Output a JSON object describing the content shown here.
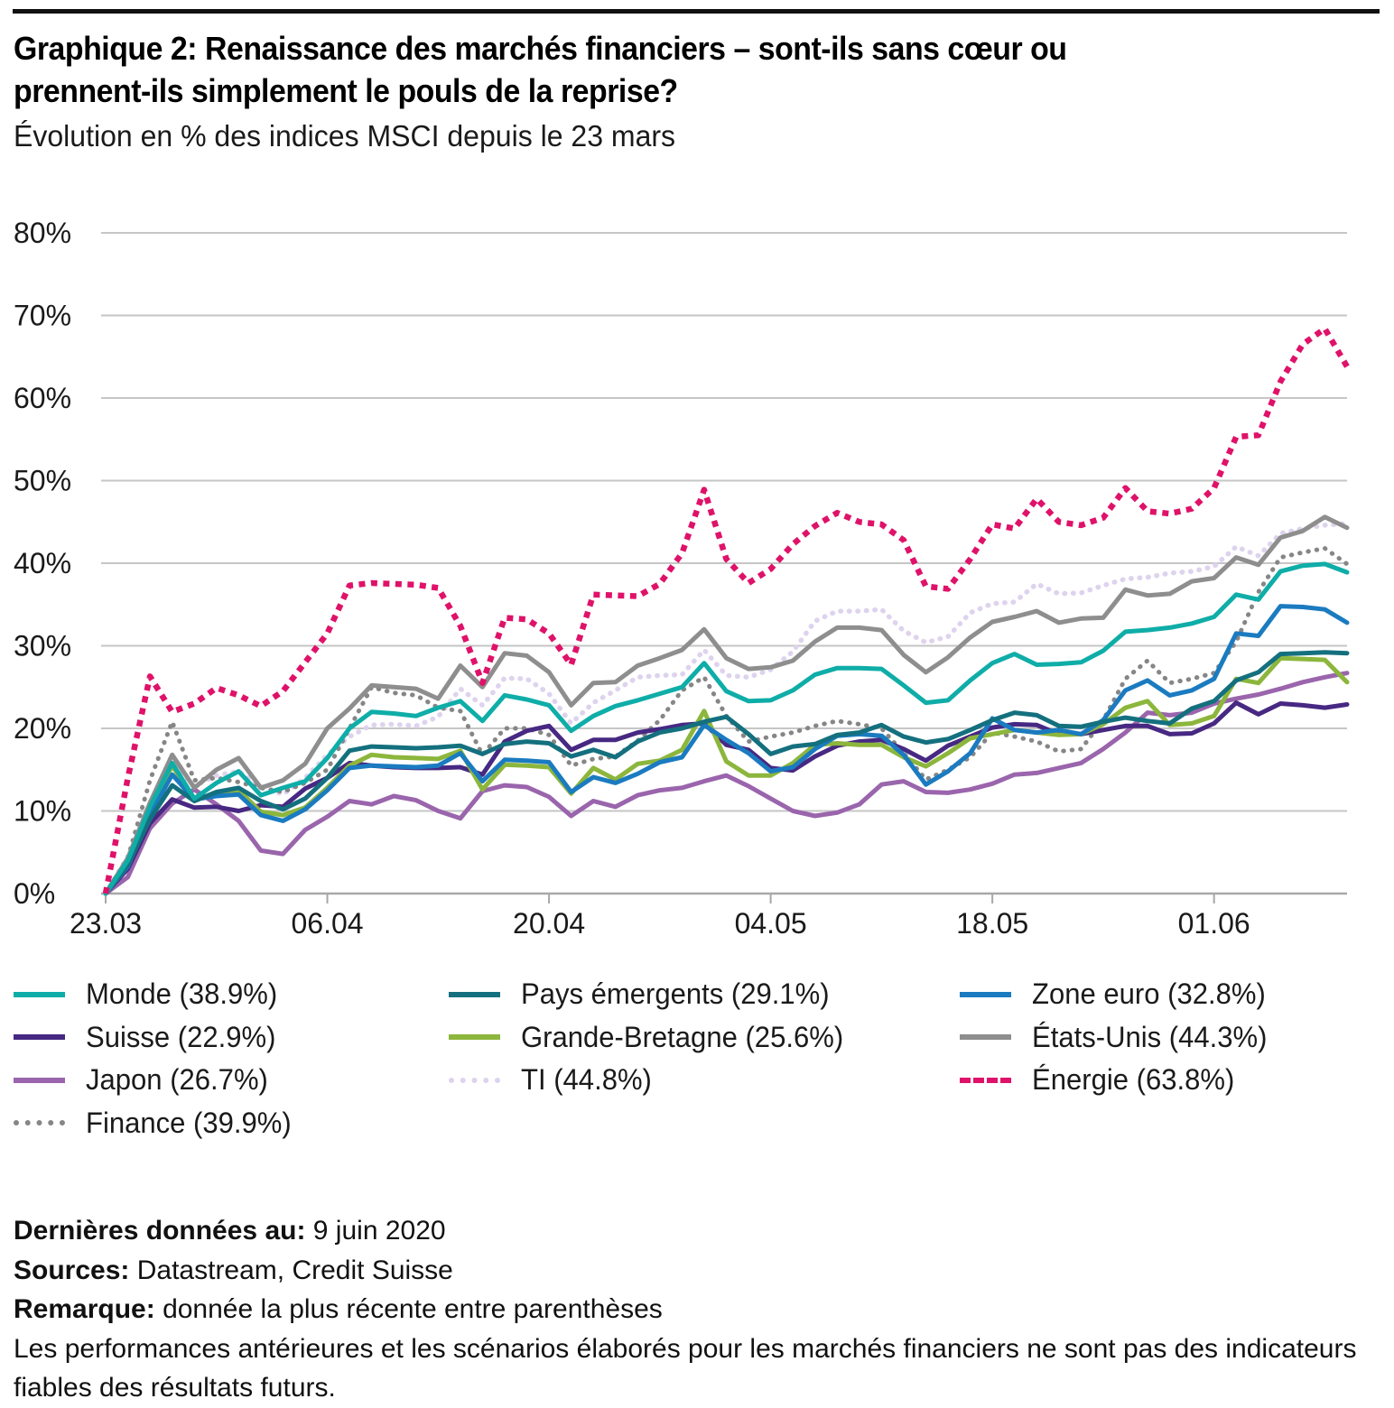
{
  "header": {
    "title_line1": "Graphique 2: Renaissance des marchés financiers – sont-ils sans cœur ou",
    "title_line2": "prennent-ils simplement le pouls de la reprise?",
    "subtitle": "Évolution en % des indices MSCI depuis le 23 mars"
  },
  "chart_data": {
    "type": "line",
    "title": "Graphique 2: Renaissance des marchés financiers – sont-ils sans cœur ou prennent-ils simplement le pouls de la reprise?",
    "subtitle": "Évolution en % des indices MSCI depuis le 23 mars",
    "n_points": 57,
    "x_axis": {
      "description": "Jours de bourse du 23.03.2020 au 09.06.2020",
      "ticks": [
        {
          "day": 0,
          "label": "23.03"
        },
        {
          "day": 10,
          "label": "06.04"
        },
        {
          "day": 20,
          "label": "20.04"
        },
        {
          "day": 30,
          "label": "04.05"
        },
        {
          "day": 40,
          "label": "18.05"
        },
        {
          "day": 50,
          "label": "01.06"
        }
      ]
    },
    "y_axis": {
      "range": [
        0,
        80
      ],
      "unit": "%",
      "ticks": [
        {
          "value": 80,
          "label": "80%"
        },
        {
          "value": 70,
          "label": "70%"
        },
        {
          "value": 60,
          "label": "60%"
        },
        {
          "value": 50,
          "label": "50%"
        },
        {
          "value": 40,
          "label": "40%"
        },
        {
          "value": 30,
          "label": "30%"
        },
        {
          "value": 20,
          "label": "20%"
        },
        {
          "value": 10,
          "label": "10%"
        },
        {
          "value": 0,
          "label": "0%"
        }
      ]
    },
    "draw_order": [
      "TI",
      "Japon",
      "Finance",
      "États-Unis",
      "Suisse",
      "Grande-Bretagne",
      "Zone euro",
      "Pays émergents",
      "Monde",
      "Énergie"
    ],
    "series": [
      {
        "name": "Monde",
        "label": "Monde (38.9%)",
        "final_value": 38.9,
        "color": "#0FADA8",
        "style": "solid",
        "values": [
          0,
          4.0,
          10.5,
          15.8,
          11.5,
          13.4,
          14.8,
          11.9,
          12.8,
          13.6,
          16.4,
          20.0,
          22.0,
          21.8,
          21.5,
          22.5,
          23.3,
          20.9,
          24.0,
          23.5,
          22.8,
          19.7,
          21.5,
          22.7,
          23.4,
          24.2,
          25.0,
          27.9,
          24.5,
          23.3,
          23.4,
          24.6,
          26.5,
          27.3,
          27.3,
          27.2,
          25.2,
          23.1,
          23.4,
          25.8,
          27.9,
          29.0,
          27.7,
          27.8,
          28.0,
          29.4,
          31.7,
          31.9,
          32.2,
          32.7,
          33.5,
          36.2,
          35.6,
          39.0,
          39.7,
          39.9,
          38.9
        ]
      },
      {
        "name": "Pays émergents",
        "label": "Pays émergents (29.1%)",
        "final_value": 29.1,
        "color": "#14707E",
        "style": "solid",
        "values": [
          0,
          3.5,
          9.0,
          13.1,
          11.2,
          12.3,
          12.8,
          11.2,
          10.2,
          11.5,
          14.0,
          17.3,
          17.8,
          17.7,
          17.6,
          17.7,
          17.9,
          16.9,
          18.1,
          18.4,
          18.2,
          16.6,
          17.4,
          16.5,
          18.4,
          19.5,
          20.0,
          20.8,
          21.4,
          19.3,
          16.9,
          17.8,
          18.1,
          19.2,
          19.5,
          20.4,
          19.0,
          18.3,
          18.7,
          19.8,
          21.0,
          21.9,
          21.6,
          20.3,
          20.2,
          20.8,
          21.3,
          20.9,
          20.6,
          22.4,
          23.3,
          25.8,
          26.8,
          29.0,
          29.1,
          29.2,
          29.1
        ]
      },
      {
        "name": "Zone euro",
        "label": "Zone euro (32.8%)",
        "final_value": 32.8,
        "color": "#1B7BC0",
        "style": "solid",
        "values": [
          0,
          3.3,
          9.5,
          14.4,
          11.4,
          11.8,
          12.0,
          9.5,
          8.8,
          10.2,
          12.5,
          15.2,
          15.5,
          15.4,
          15.3,
          15.5,
          17.0,
          13.6,
          16.2,
          16.1,
          15.9,
          12.3,
          14.1,
          13.4,
          14.5,
          15.9,
          16.5,
          20.4,
          18.6,
          17.0,
          14.8,
          15.3,
          17.5,
          19.1,
          19.3,
          19.1,
          16.8,
          13.2,
          14.8,
          17.0,
          21.2,
          19.8,
          19.5,
          19.8,
          19.3,
          21.0,
          24.6,
          25.8,
          24.0,
          24.6,
          26.0,
          31.5,
          31.2,
          34.8,
          34.7,
          34.4,
          32.8
        ]
      },
      {
        "name": "Suisse",
        "label": "Suisse (22.9%)",
        "final_value": 22.9,
        "color": "#472882",
        "style": "solid",
        "values": [
          0,
          3.0,
          8.5,
          11.4,
          10.4,
          10.5,
          10.0,
          10.7,
          10.5,
          12.7,
          14.0,
          15.8,
          15.5,
          15.3,
          15.2,
          15.2,
          15.3,
          14.4,
          18.4,
          19.7,
          20.3,
          17.4,
          18.6,
          18.6,
          19.5,
          19.9,
          20.4,
          20.6,
          18.0,
          17.4,
          15.2,
          14.9,
          16.6,
          17.9,
          18.4,
          18.6,
          17.5,
          16.1,
          17.9,
          19.0,
          20.1,
          20.5,
          20.4,
          19.3,
          19.3,
          19.8,
          20.3,
          20.3,
          19.3,
          19.4,
          20.6,
          23.1,
          21.7,
          23.0,
          22.8,
          22.5,
          22.9
        ]
      },
      {
        "name": "Grande-Bretagne",
        "label": "Grande-Bretagne (25.6%)",
        "final_value": 25.6,
        "color": "#8CB63C",
        "style": "solid",
        "values": [
          0,
          3.6,
          10.0,
          15.5,
          11.4,
          12.0,
          12.5,
          9.9,
          9.5,
          10.4,
          12.8,
          15.5,
          16.8,
          16.5,
          16.4,
          16.3,
          17.3,
          12.6,
          15.6,
          15.5,
          15.3,
          12.1,
          15.2,
          13.8,
          15.7,
          16.1,
          17.4,
          22.1,
          16.0,
          14.3,
          14.3,
          15.8,
          18.0,
          18.2,
          18.0,
          18.0,
          16.5,
          15.4,
          17.0,
          18.8,
          19.3,
          19.8,
          19.5,
          19.2,
          19.3,
          20.5,
          22.5,
          23.3,
          20.4,
          20.6,
          21.5,
          26.0,
          25.5,
          28.5,
          28.4,
          28.3,
          25.6
        ]
      },
      {
        "name": "États-Unis",
        "label": "États-Unis (44.3%)",
        "final_value": 44.3,
        "color": "#8E8E8E",
        "style": "solid",
        "values": [
          0,
          4.3,
          11.0,
          16.8,
          12.8,
          15.0,
          16.4,
          12.8,
          13.7,
          15.7,
          20.0,
          22.4,
          25.2,
          25.0,
          24.8,
          23.6,
          27.6,
          25.0,
          29.1,
          28.8,
          26.8,
          22.8,
          25.5,
          25.6,
          27.6,
          28.5,
          29.5,
          32.0,
          28.5,
          27.2,
          27.4,
          28.2,
          30.5,
          32.2,
          32.2,
          31.9,
          28.9,
          26.8,
          28.6,
          31.0,
          32.9,
          33.5,
          34.2,
          32.8,
          33.3,
          33.4,
          36.8,
          36.1,
          36.3,
          37.8,
          38.2,
          40.7,
          39.8,
          43.1,
          43.9,
          45.6,
          44.3
        ]
      },
      {
        "name": "Japon",
        "label": "Japon (26.7%)",
        "final_value": 26.7,
        "color": "#9A65AC",
        "style": "solid",
        "values": [
          0,
          2.0,
          7.9,
          10.9,
          12.6,
          10.8,
          8.8,
          5.2,
          4.8,
          7.7,
          9.3,
          11.2,
          10.8,
          11.8,
          11.3,
          10.0,
          9.1,
          12.4,
          13.1,
          12.9,
          11.7,
          9.4,
          11.2,
          10.5,
          11.9,
          12.5,
          12.8,
          13.6,
          14.3,
          13.0,
          11.5,
          10.0,
          9.4,
          9.8,
          10.8,
          13.2,
          13.6,
          12.3,
          12.2,
          12.6,
          13.3,
          14.4,
          14.6,
          15.2,
          15.8,
          17.5,
          19.5,
          21.9,
          21.6,
          21.9,
          23.0,
          23.6,
          24.1,
          24.8,
          25.6,
          26.2,
          26.7
        ]
      },
      {
        "name": "TI",
        "label": "TI (44.8%)",
        "final_value": 44.8,
        "color": "#DED3EE",
        "style": "dotted",
        "values": [
          0,
          4.5,
          11.0,
          16.0,
          13.0,
          14.3,
          14.8,
          13.0,
          12.0,
          14.0,
          16.8,
          19.0,
          20.4,
          20.5,
          20.3,
          21.4,
          24.8,
          22.8,
          26.1,
          26.0,
          24.2,
          20.6,
          23.1,
          24.6,
          26.2,
          26.4,
          26.5,
          29.5,
          26.4,
          26.2,
          27.1,
          29.3,
          33.0,
          34.2,
          34.2,
          34.4,
          31.8,
          30.4,
          31.1,
          34.0,
          35.1,
          35.3,
          37.5,
          36.3,
          36.4,
          37.3,
          38.1,
          38.3,
          38.8,
          39.0,
          39.6,
          42.0,
          40.9,
          43.6,
          44.2,
          44.6,
          44.8
        ]
      },
      {
        "name": "Énergie",
        "label": "Énergie (63.8%)",
        "final_value": 63.8,
        "color": "#DF1269",
        "style": "dashed",
        "values": [
          0,
          14.0,
          26.3,
          22.0,
          23.0,
          24.9,
          24.0,
          22.7,
          24.5,
          28.0,
          31.5,
          37.3,
          37.6,
          37.5,
          37.4,
          37.0,
          32.4,
          25.5,
          33.4,
          33.2,
          31.5,
          27.7,
          36.2,
          36.1,
          36.0,
          37.5,
          41.2,
          48.9,
          40.5,
          37.6,
          39.3,
          42.3,
          44.5,
          46.1,
          45.0,
          44.7,
          42.8,
          37.2,
          36.9,
          40.5,
          44.7,
          44.2,
          47.8,
          45.0,
          44.6,
          45.5,
          49.1,
          46.3,
          46.0,
          46.6,
          49.1,
          55.3,
          55.5,
          62.0,
          66.5,
          68.4,
          63.8
        ]
      },
      {
        "name": "Finance",
        "label": "Finance (39.9%)",
        "final_value": 39.9,
        "color": "#868686",
        "style": "dotted",
        "values": [
          0,
          4.3,
          13.7,
          20.8,
          13.7,
          14.0,
          13.5,
          12.8,
          12.3,
          13.4,
          15.0,
          20.0,
          25.0,
          24.3,
          24.0,
          22.5,
          22.1,
          16.8,
          20.0,
          20.0,
          19.2,
          15.5,
          16.3,
          16.6,
          18.5,
          21.0,
          24.6,
          26.2,
          21.5,
          18.4,
          19.0,
          19.5,
          20.3,
          20.9,
          20.5,
          20.0,
          17.0,
          13.8,
          15.0,
          16.5,
          19.5,
          19.0,
          18.4,
          17.2,
          17.5,
          21.0,
          26.0,
          28.2,
          25.5,
          26.0,
          26.7,
          30.5,
          36.5,
          40.7,
          41.3,
          41.8,
          39.9
        ]
      }
    ]
  },
  "legend": {
    "columns": [
      [
        "Monde",
        "Suisse",
        "Japon",
        "Finance"
      ],
      [
        "Pays émergents",
        "Grande-Bretagne",
        "TI"
      ],
      [
        "Zone euro",
        "États-Unis",
        "Énergie"
      ]
    ]
  },
  "footer": {
    "last_data_label": "Dernières données au:",
    "last_data_value": "9 juin 2020",
    "sources_label": "Sources:",
    "sources_value": "Datastream, Credit Suisse",
    "note_label": "Remarque:",
    "note_value": "donnée la plus récente entre parenthèses",
    "disclaimer": "Les performances antérieures et les scénarios élaborés pour les marchés financiers ne sont pas des indicateurs fiables des résultats futurs."
  }
}
